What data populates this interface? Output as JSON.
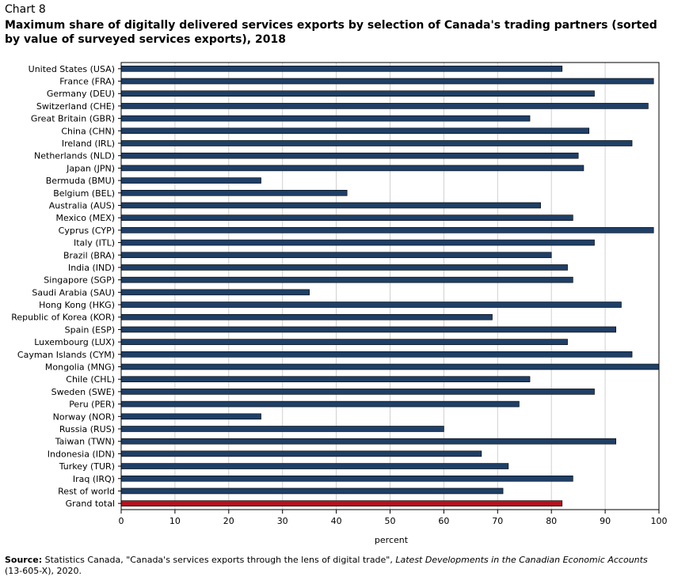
{
  "header": {
    "chart_number": "Chart 8",
    "title": "Maximum share of digitally  delivered services exports by selection of Canada's trading partners (sorted by value of surveyed services exports), 2018"
  },
  "source": {
    "label": "Source:",
    "text_before": " Statistics Canada, \"Canada's services exports through the lens of digital trade\", ",
    "publication": "Latest Developments in the Canadian Economic Accounts",
    "text_after": " (13-605-X), 2020."
  },
  "colors": {
    "bar": "#1f3f66",
    "highlight": "#b3121d",
    "grid": "#d0d0d0"
  },
  "chart_data": {
    "type": "bar",
    "orientation": "horizontal",
    "xlabel": "percent",
    "xlim": [
      0,
      100
    ],
    "xticks": [
      0,
      10,
      20,
      30,
      40,
      50,
      60,
      70,
      80,
      90,
      100
    ],
    "grid": true,
    "categories": [
      "United States (USA)",
      "France (FRA)",
      "Germany (DEU)",
      "Switzerland (CHE)",
      "Great Britain (GBR)",
      "China (CHN)",
      "Ireland (IRL)",
      "Netherlands (NLD)",
      "Japan (JPN)",
      "Bermuda (BMU)",
      "Belgium (BEL)",
      "Australia (AUS)",
      "Mexico (MEX)",
      "Cyprus (CYP)",
      "Italy (ITL)",
      "Brazil (BRA)",
      "India (IND)",
      "Singapore (SGP)",
      "Saudi Arabia (SAU)",
      "Hong Kong (HKG)",
      "Republic of Korea (KOR)",
      "Spain (ESP)",
      "Luxembourg (LUX)",
      "Cayman Islands (CYM)",
      "Mongolia (MNG)",
      "Chile (CHL)",
      "Sweden (SWE)",
      "Peru (PER)",
      "Norway (NOR)",
      "Russia (RUS)",
      "Taiwan (TWN)",
      "Indonesia (IDN)",
      "Turkey (TUR)",
      "Iraq (IRQ)",
      "Rest of world",
      "Grand total"
    ],
    "values": [
      82,
      99,
      88,
      98,
      76,
      87,
      95,
      85,
      86,
      26,
      42,
      78,
      84,
      99,
      88,
      80,
      83,
      84,
      35,
      93,
      69,
      92,
      83,
      95,
      100,
      76,
      88,
      74,
      26,
      60,
      92,
      67,
      72,
      84,
      71,
      82
    ],
    "highlight_category": "Grand total"
  }
}
